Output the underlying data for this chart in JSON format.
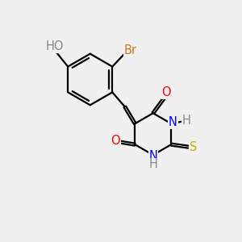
{
  "bg_color": "#f0f0f0",
  "bond_color": "#000000",
  "atom_colors": {
    "O": "#ff0000",
    "N": "#0000ff",
    "S": "#b8b800",
    "Br": "#cc7722",
    "HO": "#888888",
    "H": "#888888",
    "C": "#000000"
  },
  "font_size": 10.5,
  "lw": 1.6
}
